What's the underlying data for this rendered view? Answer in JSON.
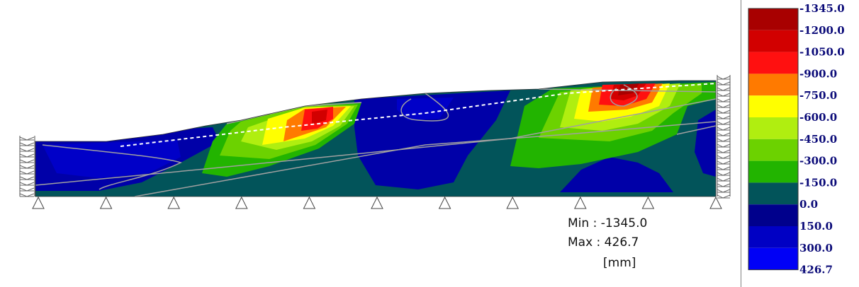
{
  "result_info": {
    "min_label": "Min : -1345.0",
    "max_label": "Max : 426.7",
    "unit": "[mm]"
  },
  "legend": [
    {
      "label": "-1345.0",
      "color": "#a80000"
    },
    {
      "label": "-1200.0",
      "color": "#d20000"
    },
    {
      "label": "-1050.0",
      "color": "#ff1010"
    },
    {
      "label": "-900.0",
      "color": "#ff7a00"
    },
    {
      "label": "-750.0",
      "color": "#ffff00"
    },
    {
      "label": "-600.0",
      "color": "#b0ee10"
    },
    {
      "label": "-450.0",
      "color": "#6cd200"
    },
    {
      "label": "-300.0",
      "color": "#22b400"
    },
    {
      "label": "-150.0",
      "color": "#02545a"
    },
    {
      "label": "0.0",
      "color": "#00008c"
    },
    {
      "label": "150.0",
      "color": "#0000c4"
    },
    {
      "label": "300.0",
      "color": "#0000f6"
    },
    {
      "label": "426.7",
      "color": null
    }
  ],
  "colors": {
    "background_dark": "#02545a",
    "blue": "#0000a8",
    "contour_line": "#a0a0a0",
    "phreatic_line": "#ffffff"
  }
}
